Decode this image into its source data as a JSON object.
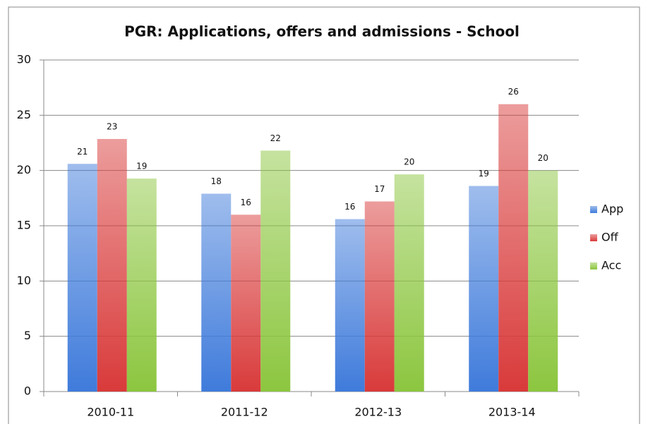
{
  "chart_data": {
    "type": "bar",
    "title": "PGR: Applications, offers and admissions - School",
    "categories": [
      "2010-11",
      "2011-12",
      "2012-13",
      "2013-14"
    ],
    "series": [
      {
        "name": "App",
        "color": "#3f7bdb",
        "values": [
          20.6,
          17.9,
          15.6,
          18.6
        ],
        "value_labels": [
          "21",
          "18",
          "16",
          "19"
        ]
      },
      {
        "name": "Off",
        "color": "#d93a3a",
        "values": [
          22.85,
          16.0,
          17.2,
          26.0
        ],
        "value_labels": [
          "23",
          "16",
          "17",
          "26"
        ]
      },
      {
        "name": "Acc",
        "color": "#8cc63f",
        "values": [
          19.27,
          21.8,
          19.65,
          20.0
        ],
        "value_labels": [
          "19",
          "22",
          "20",
          "20"
        ]
      }
    ],
    "ylim": [
      0,
      30
    ],
    "yticks": [
      0,
      5,
      10,
      15,
      20,
      25,
      30
    ],
    "grid": true,
    "legend": "right"
  }
}
